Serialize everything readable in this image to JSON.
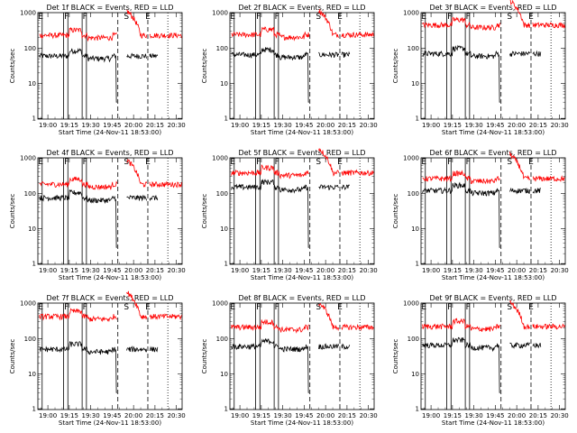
{
  "figure": {
    "colors": {
      "events": "#000000",
      "lld": "#ff0000",
      "axis": "#000000",
      "background": "#ffffff"
    }
  },
  "chart_data": [
    {
      "type": "line",
      "title": "Det 1f BLACK = Events, RED = LLD",
      "xlabel": "Start Time (24-Nov-11 18:53:00)",
      "ylabel": "Counts/sec",
      "yscale": "log",
      "ylim": [
        1,
        1000
      ],
      "xlim": [
        "18:53",
        "20:34"
      ],
      "x_ticks": [
        "19:00",
        "19:15",
        "19:30",
        "19:45",
        "20:00",
        "20:15",
        "20:30"
      ],
      "y_ticks": [
        "1",
        "10",
        "100",
        "1000"
      ],
      "region_labels": [
        {
          "label": "E",
          "x": "18:55"
        },
        {
          "label": "F",
          "x": "19:13"
        },
        {
          "label": "F",
          "x": "19:26"
        },
        {
          "label": "S",
          "x": "19:55"
        },
        {
          "label": "E",
          "x": "20:10"
        }
      ],
      "series": [
        {
          "name": "Events",
          "color": "#000000",
          "base": 60
        },
        {
          "name": "LLD",
          "color": "#ff0000",
          "base": 230
        }
      ]
    },
    {
      "type": "line",
      "title": "Det 2f BLACK = Events, RED = LLD",
      "xlabel": "Start Time (24-Nov-11 18:53:00)",
      "ylabel": "Counts/sec",
      "yscale": "log",
      "ylim": [
        1,
        1000
      ],
      "xlim": [
        "18:53",
        "20:34"
      ],
      "x_ticks": [
        "19:00",
        "19:15",
        "19:30",
        "19:45",
        "20:00",
        "20:15",
        "20:30"
      ],
      "y_ticks": [
        "1",
        "10",
        "100",
        "1000"
      ],
      "region_labels": [
        {
          "label": "E",
          "x": "18:55"
        },
        {
          "label": "F",
          "x": "19:13"
        },
        {
          "label": "F",
          "x": "19:26"
        },
        {
          "label": "S",
          "x": "19:55"
        },
        {
          "label": "E",
          "x": "20:10"
        }
      ],
      "series": [
        {
          "name": "Events",
          "color": "#000000",
          "base": 65
        },
        {
          "name": "LLD",
          "color": "#ff0000",
          "base": 240
        }
      ]
    },
    {
      "type": "line",
      "title": "Det 3f BLACK = Events, RED = LLD",
      "xlabel": "Start Time (24-Nov-11 18:53:00)",
      "ylabel": "Counts/sec",
      "yscale": "log",
      "ylim": [
        1,
        1000
      ],
      "xlim": [
        "18:53",
        "20:34"
      ],
      "x_ticks": [
        "19:00",
        "19:15",
        "19:30",
        "19:45",
        "20:00",
        "20:15",
        "20:30"
      ],
      "y_ticks": [
        "1",
        "10",
        "100",
        "1000"
      ],
      "region_labels": [
        {
          "label": "E",
          "x": "18:55"
        },
        {
          "label": "F",
          "x": "19:13"
        },
        {
          "label": "F",
          "x": "19:26"
        },
        {
          "label": "S",
          "x": "19:55"
        },
        {
          "label": "E",
          "x": "20:10"
        }
      ],
      "series": [
        {
          "name": "Events",
          "color": "#000000",
          "base": 70
        },
        {
          "name": "LLD",
          "color": "#ff0000",
          "base": 450
        }
      ]
    },
    {
      "type": "line",
      "title": "Det 4f BLACK = Events, RED = LLD",
      "xlabel": "Start Time (24-Nov-11 18:53:00)",
      "ylabel": "Counts/sec",
      "yscale": "log",
      "ylim": [
        1,
        1000
      ],
      "xlim": [
        "18:53",
        "20:34"
      ],
      "x_ticks": [
        "19:00",
        "19:15",
        "19:30",
        "19:45",
        "20:00",
        "20:15",
        "20:30"
      ],
      "y_ticks": [
        "1",
        "10",
        "100",
        "1000"
      ],
      "region_labels": [
        {
          "label": "E",
          "x": "18:55"
        },
        {
          "label": "F",
          "x": "19:13"
        },
        {
          "label": "F",
          "x": "19:26"
        },
        {
          "label": "S",
          "x": "19:55"
        },
        {
          "label": "E",
          "x": "20:10"
        }
      ],
      "series": [
        {
          "name": "Events",
          "color": "#000000",
          "base": 75
        },
        {
          "name": "LLD",
          "color": "#ff0000",
          "base": 180
        }
      ]
    },
    {
      "type": "line",
      "title": "Det 5f BLACK = Events, RED = LLD",
      "xlabel": "Start Time (24-Nov-11 18:53:00)",
      "ylabel": "Counts/sec",
      "yscale": "log",
      "ylim": [
        1,
        1000
      ],
      "xlim": [
        "18:53",
        "20:34"
      ],
      "x_ticks": [
        "19:00",
        "19:15",
        "19:30",
        "19:45",
        "20:00",
        "20:15",
        "20:30"
      ],
      "y_ticks": [
        "1",
        "10",
        "100",
        "1000"
      ],
      "region_labels": [
        {
          "label": "E",
          "x": "18:55"
        },
        {
          "label": "F",
          "x": "19:13"
        },
        {
          "label": "F",
          "x": "19:26"
        },
        {
          "label": "S",
          "x": "19:55"
        },
        {
          "label": "E",
          "x": "20:10"
        }
      ],
      "series": [
        {
          "name": "Events",
          "color": "#000000",
          "base": 150
        },
        {
          "name": "LLD",
          "color": "#ff0000",
          "base": 380
        }
      ]
    },
    {
      "type": "line",
      "title": "Det 6f BLACK = Events, RED = LLD",
      "xlabel": "Start Time (24-Nov-11 18:53:00)",
      "ylabel": "Counts/sec",
      "yscale": "log",
      "ylim": [
        1,
        1000
      ],
      "xlim": [
        "18:53",
        "20:34"
      ],
      "x_ticks": [
        "19:00",
        "19:15",
        "19:30",
        "19:45",
        "20:00",
        "20:15",
        "20:30"
      ],
      "y_ticks": [
        "1",
        "10",
        "100",
        "1000"
      ],
      "region_labels": [
        {
          "label": "E",
          "x": "18:55"
        },
        {
          "label": "F",
          "x": "19:13"
        },
        {
          "label": "F",
          "x": "19:26"
        },
        {
          "label": "S",
          "x": "19:55"
        },
        {
          "label": "E",
          "x": "20:10"
        }
      ],
      "series": [
        {
          "name": "Events",
          "color": "#000000",
          "base": 120
        },
        {
          "name": "LLD",
          "color": "#ff0000",
          "base": 260
        }
      ]
    },
    {
      "type": "line",
      "title": "Det 7f BLACK = Events, RED = LLD",
      "xlabel": "Start Time (24-Nov-11 18:53:00)",
      "ylabel": "Counts/sec",
      "yscale": "log",
      "ylim": [
        1,
        1000
      ],
      "xlim": [
        "18:53",
        "20:34"
      ],
      "x_ticks": [
        "19:00",
        "19:15",
        "19:30",
        "19:45",
        "20:00",
        "20:15",
        "20:30"
      ],
      "y_ticks": [
        "1",
        "10",
        "100",
        "1000"
      ],
      "region_labels": [
        {
          "label": "E",
          "x": "18:55"
        },
        {
          "label": "F",
          "x": "19:13"
        },
        {
          "label": "F",
          "x": "19:26"
        },
        {
          "label": "S",
          "x": "19:55"
        },
        {
          "label": "E",
          "x": "20:10"
        }
      ],
      "series": [
        {
          "name": "Events",
          "color": "#000000",
          "base": 50
        },
        {
          "name": "LLD",
          "color": "#ff0000",
          "base": 420
        }
      ]
    },
    {
      "type": "line",
      "title": "Det 8f BLACK = Events, RED = LLD",
      "xlabel": "Start Time (24-Nov-11 18:53:00)",
      "ylabel": "Counts/sec",
      "yscale": "log",
      "ylim": [
        1,
        1000
      ],
      "xlim": [
        "18:53",
        "20:34"
      ],
      "x_ticks": [
        "19:00",
        "19:15",
        "19:30",
        "19:45",
        "20:00",
        "20:15",
        "20:30"
      ],
      "y_ticks": [
        "1",
        "10",
        "100",
        "1000"
      ],
      "region_labels": [
        {
          "label": "E",
          "x": "18:55"
        },
        {
          "label": "F",
          "x": "19:13"
        },
        {
          "label": "F",
          "x": "19:26"
        },
        {
          "label": "S",
          "x": "19:55"
        },
        {
          "label": "E",
          "x": "20:10"
        }
      ],
      "series": [
        {
          "name": "Events",
          "color": "#000000",
          "base": 60
        },
        {
          "name": "LLD",
          "color": "#ff0000",
          "base": 210
        }
      ]
    },
    {
      "type": "line",
      "title": "Det 9f BLACK = Events, RED = LLD",
      "xlabel": "Start Time (24-Nov-11 18:53:00)",
      "ylabel": "Counts/sec",
      "yscale": "log",
      "ylim": [
        1,
        1000
      ],
      "xlim": [
        "18:53",
        "20:34"
      ],
      "x_ticks": [
        "19:00",
        "19:15",
        "19:30",
        "19:45",
        "20:00",
        "20:15",
        "20:30"
      ],
      "y_ticks": [
        "1",
        "10",
        "100",
        "1000"
      ],
      "region_labels": [
        {
          "label": "E",
          "x": "18:55"
        },
        {
          "label": "F",
          "x": "19:13"
        },
        {
          "label": "F",
          "x": "19:26"
        },
        {
          "label": "S",
          "x": "19:55"
        },
        {
          "label": "E",
          "x": "20:10"
        }
      ],
      "series": [
        {
          "name": "Events",
          "color": "#000000",
          "base": 65
        },
        {
          "name": "LLD",
          "color": "#ff0000",
          "base": 220
        }
      ]
    }
  ]
}
